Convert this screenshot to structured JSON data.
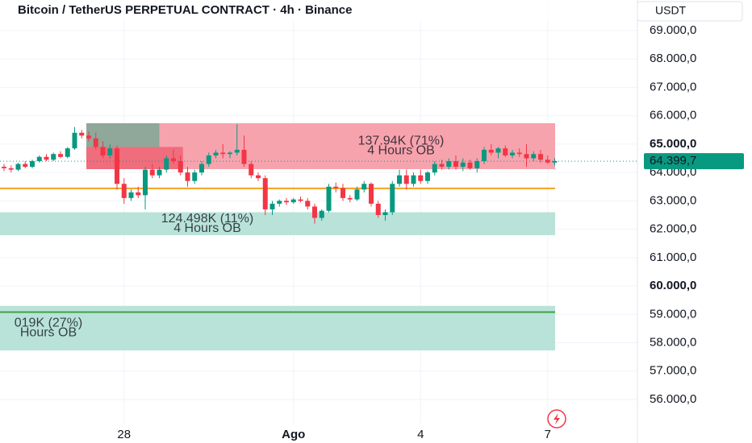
{
  "chart_data": {
    "type": "candlestick",
    "title": "Bitcoin / TetherUS PERPETUAL CONTRACT · 4h · Binance",
    "currency": "USDT",
    "categories": [
      null,
      null,
      null,
      null,
      null,
      null,
      null,
      null,
      null,
      null,
      null,
      null,
      null,
      null,
      null,
      null,
      null,
      "28",
      null,
      null,
      null,
      null,
      null,
      null,
      null,
      null,
      null,
      null,
      null,
      null,
      null,
      null,
      null,
      null,
      null,
      null,
      null,
      null,
      null,
      null,
      null,
      "Ago",
      null,
      null,
      null,
      null,
      null,
      null,
      null,
      null,
      null,
      null,
      null,
      null,
      null,
      null,
      null,
      null,
      null,
      "4",
      null,
      null,
      null,
      null,
      null,
      null,
      null,
      null,
      null,
      null,
      null,
      null,
      null,
      null,
      null,
      null,
      null,
      "7",
      null
    ],
    "open": [
      64200,
      64150,
      64100,
      64300,
      64200,
      64400,
      64550,
      64450,
      64650,
      64550,
      64850,
      65400,
      65300,
      65200,
      64900,
      64600,
      64850,
      63600,
      63100,
      63300,
      63200,
      64100,
      63900,
      64100,
      64500,
      64400,
      64000,
      63700,
      64000,
      64300,
      64600,
      64700,
      64650,
      64700,
      64800,
      64300,
      63900,
      63800,
      62700,
      62900,
      63000,
      62950,
      63050,
      63000,
      62800,
      62400,
      62650,
      63500,
      63450,
      63100,
      63050,
      63400,
      63600,
      62900,
      62500,
      62600,
      63600,
      63900,
      63600,
      63900,
      63700,
      64000,
      64300,
      64200,
      64400,
      64200,
      64350,
      64150,
      64400,
      64800,
      64700,
      64850,
      64600,
      64700,
      64650,
      64500,
      64650,
      64450,
      64350
    ],
    "high": [
      64300,
      64250,
      64350,
      64400,
      64450,
      64600,
      64650,
      64700,
      64750,
      64900,
      65600,
      65500,
      65450,
      65400,
      65100,
      65000,
      64950,
      63800,
      63400,
      63500,
      64200,
      64300,
      64200,
      64600,
      64800,
      64600,
      64200,
      64100,
      64400,
      64700,
      64800,
      65000,
      64750,
      65700,
      65300,
      64400,
      64000,
      63900,
      63000,
      63050,
      63100,
      63100,
      63150,
      63100,
      62900,
      62700,
      63600,
      63650,
      63600,
      63200,
      63500,
      63700,
      63650,
      63000,
      62700,
      63700,
      64100,
      64100,
      64000,
      64100,
      64050,
      64400,
      64450,
      64500,
      64600,
      64500,
      64450,
      64500,
      64900,
      65000,
      64900,
      64950,
      64800,
      64850,
      65000,
      64750,
      64800,
      64600,
      64500
    ],
    "low": [
      64050,
      64000,
      64050,
      64150,
      64150,
      64350,
      64400,
      64400,
      64500,
      64500,
      64800,
      65200,
      65100,
      64800,
      64500,
      64500,
      63400,
      62900,
      63000,
      63100,
      62700,
      63800,
      63800,
      64000,
      64300,
      63900,
      63500,
      63600,
      63900,
      64200,
      64500,
      64500,
      64500,
      64600,
      64200,
      63800,
      63700,
      62500,
      62500,
      62800,
      62850,
      62900,
      62950,
      62700,
      62200,
      62300,
      62600,
      63300,
      63000,
      62950,
      63000,
      63300,
      62800,
      62400,
      62300,
      62500,
      63500,
      63400,
      63500,
      63600,
      63600,
      63900,
      64100,
      64100,
      64100,
      64050,
      64100,
      64000,
      64300,
      64600,
      64500,
      64550,
      64500,
      64550,
      64200,
      64400,
      64350,
      64300,
      64250
    ],
    "close": [
      64150,
      64100,
      64300,
      64200,
      64400,
      64550,
      64450,
      64650,
      64550,
      64850,
      65400,
      65300,
      65200,
      64900,
      64600,
      64850,
      63600,
      63100,
      63300,
      63200,
      64100,
      63900,
      64100,
      64500,
      64400,
      64000,
      63700,
      64000,
      64300,
      64600,
      64700,
      64650,
      64700,
      64800,
      64300,
      63900,
      63800,
      62700,
      62900,
      63000,
      62950,
      63050,
      63000,
      62800,
      62400,
      62650,
      63500,
      63450,
      63100,
      63050,
      63400,
      63600,
      62900,
      62500,
      62600,
      63600,
      63900,
      63600,
      63900,
      63700,
      64000,
      64300,
      64200,
      64400,
      64200,
      64350,
      64150,
      64400,
      64800,
      64700,
      64850,
      64600,
      64700,
      64650,
      64500,
      64650,
      64450,
      64350,
      64400
    ],
    "up_color": "#089981",
    "down_color": "#f23645",
    "ylim": [
      55500,
      70000
    ],
    "yticks": [
      {
        "value": 56000,
        "label": "56.000,0"
      },
      {
        "value": 57000,
        "label": "57.000,0"
      },
      {
        "value": 58000,
        "label": "58.000,0"
      },
      {
        "value": 59000,
        "label": "59.000,0"
      },
      {
        "value": 60000,
        "label": "60.000,0",
        "bold": true
      },
      {
        "value": 61000,
        "label": "61.000,0"
      },
      {
        "value": 62000,
        "label": "62.000,0"
      },
      {
        "value": 63000,
        "label": "63.000,0"
      },
      {
        "value": 64000,
        "label": "64.000,0"
      },
      {
        "value": 65000,
        "label": "65.000,0",
        "bold": true
      },
      {
        "value": 66000,
        "label": "66.000,0"
      },
      {
        "value": 67000,
        "label": "67.000,0"
      },
      {
        "value": 68000,
        "label": "68.000,0"
      },
      {
        "value": 69000,
        "label": "69.000,0"
      }
    ],
    "grid": true,
    "last_price": {
      "value": 64399.7,
      "label": "64.399,7",
      "color": "#089981"
    },
    "zones": [
      {
        "from": 12,
        "top": 65736,
        "bottom": 64118,
        "color": "#f7a3ad",
        "labels": [
          "137.94K (71%)",
          "4 Hours OB"
        ]
      },
      {
        "from": 12,
        "top": 64900,
        "bottom": 64118,
        "color": "#f06d7d"
      },
      {
        "from": 12,
        "top": 65736,
        "bottom": 64900,
        "color": "#8fa89a"
      },
      {
        "from": 0,
        "top": 62600,
        "bottom": 61790,
        "color": "#b9e3d9",
        "labels": [
          "124.498K (11%)",
          "4 Hours OB"
        ]
      },
      {
        "from": 0,
        "top": 59300,
        "bottom": 57730,
        "color": "#b9e3d9",
        "labels": [
          "019K (27%)",
          "Hours OB"
        ]
      }
    ],
    "levels": [
      {
        "value": 63440,
        "color": "#f5a020"
      },
      {
        "value": 59080,
        "color": "#43a047"
      }
    ]
  }
}
